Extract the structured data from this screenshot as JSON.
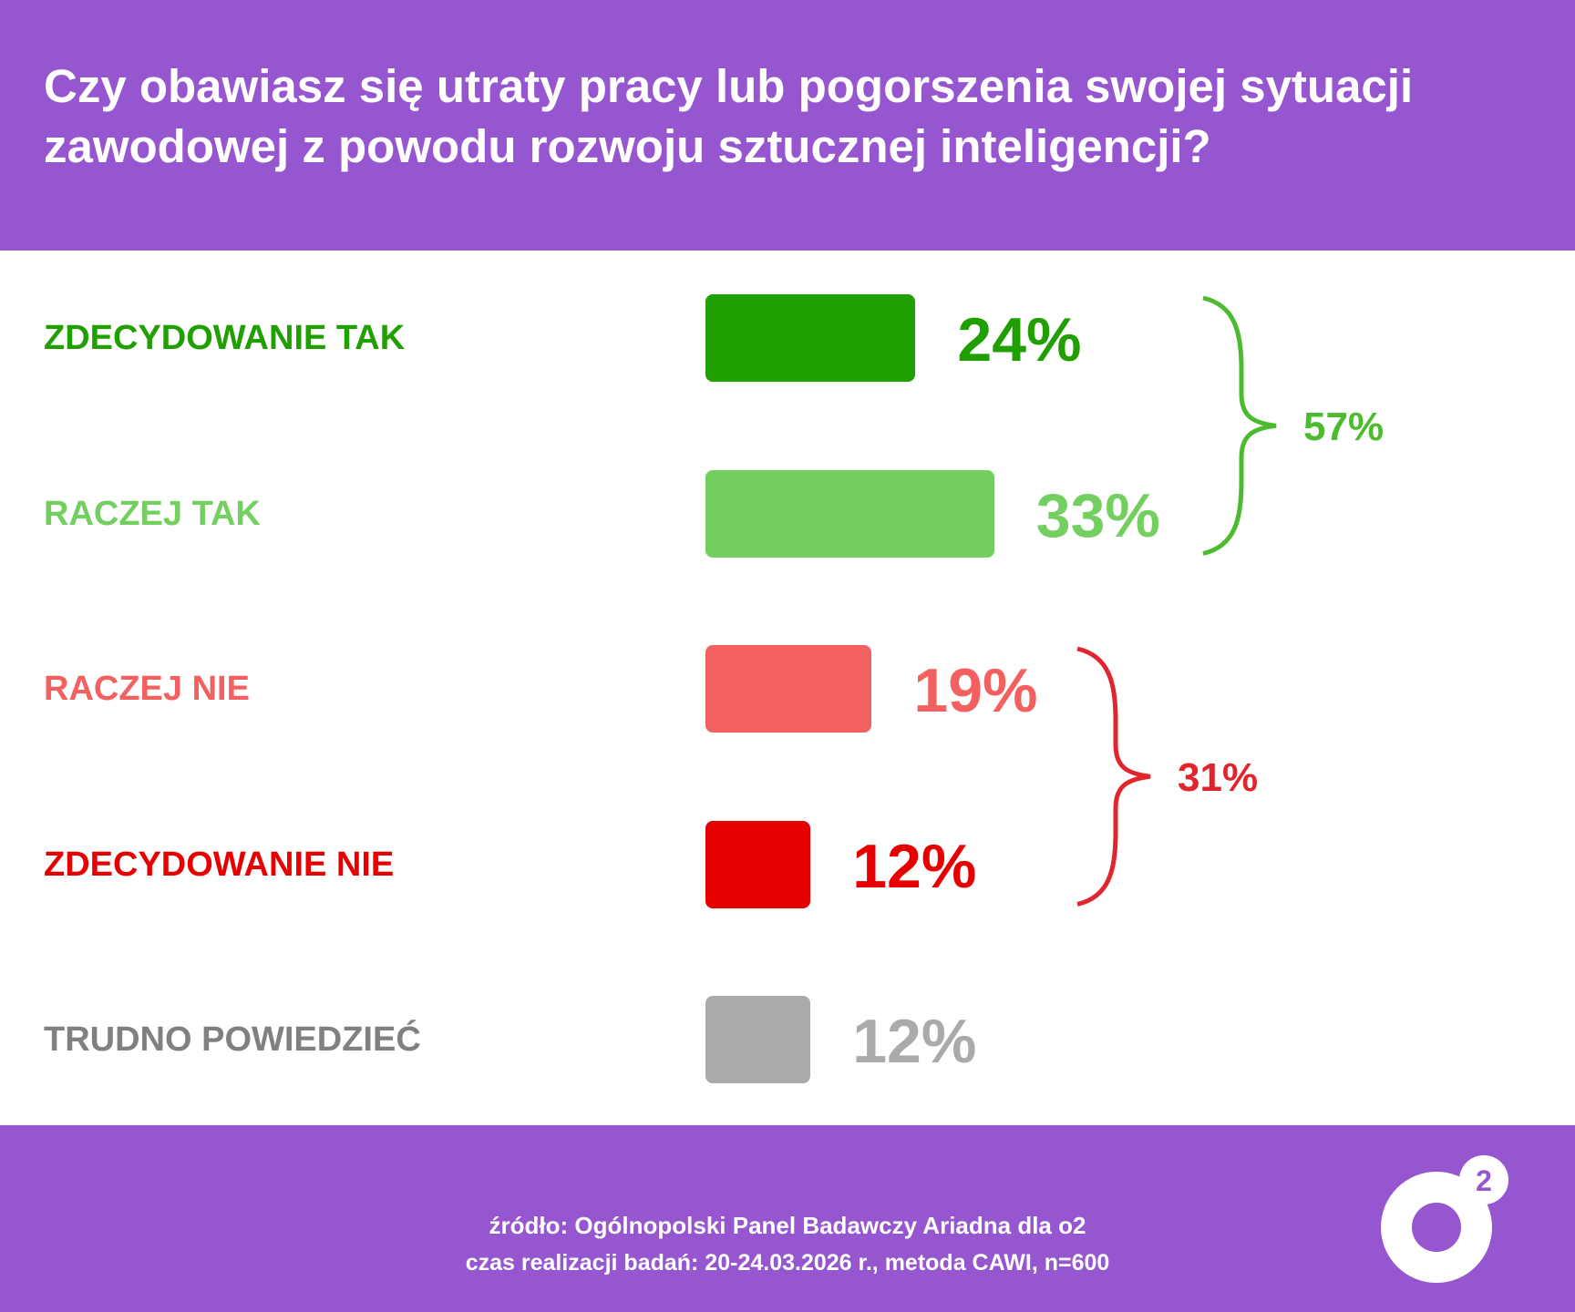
{
  "header": {
    "title": "Czy obawiasz się utraty pracy lub pogorszenia swojej sytuacji zawodowej z powodu rozwoju sztucznej inteligencji?"
  },
  "chart_data": {
    "type": "bar",
    "orientation": "horizontal",
    "title": "Czy obawiasz się utraty pracy lub pogorszenia swojej sytuacji zawodowej z powodu rozwoju sztucznej inteligencji?",
    "categories": [
      "ZDECYDOWANIE TAK",
      "RACZEJ TAK",
      "RACZEJ NIE",
      "ZDECYDOWANIE NIE",
      "TRUDNO POWIEDZIEĆ"
    ],
    "values": [
      24,
      33,
      19,
      12,
      12
    ],
    "value_labels": [
      "24%",
      "33%",
      "19%",
      "12%",
      "12%"
    ],
    "colors": [
      "#1FA000",
      "#72CF60",
      "#F26060",
      "#E60000",
      "#AAAAAA"
    ],
    "label_colors": [
      "#1FA000",
      "#72CF60",
      "#F26060",
      "#E60000",
      "#808080"
    ],
    "groups": [
      {
        "members": [
          0,
          1
        ],
        "total": 57,
        "label": "57%",
        "color": "#4CBB2F"
      },
      {
        "members": [
          2,
          3
        ],
        "total": 31,
        "label": "31%",
        "color": "#E0262C"
      }
    ],
    "unit": "%",
    "grid": false,
    "axes_visible": false
  },
  "footer": {
    "source": "źródło: Ogólnopolski Panel Badawczy Ariadna dla o2",
    "method": "czas realizacji badań: 20-24.03.2026 r., metoda CAWI, n=600",
    "logo_text": "o2"
  },
  "colors": {
    "brand_purple": "#9656D0"
  }
}
